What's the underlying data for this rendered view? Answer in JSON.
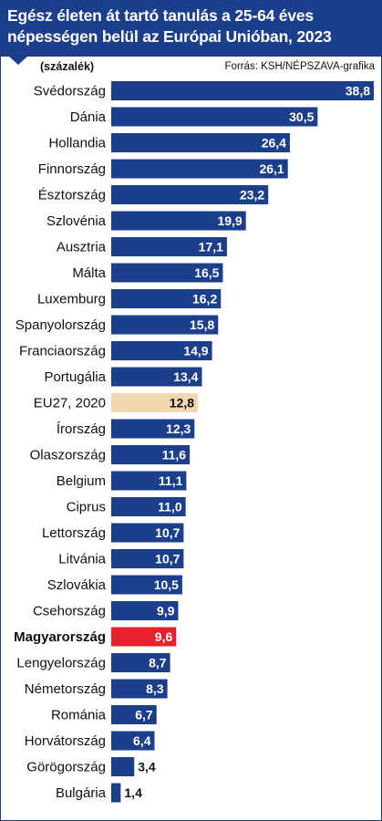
{
  "header": {
    "title_line1": "Egész életen át tartó tanulás a 25-64 éves",
    "title_line2": "népességen belül az Európai Unióban, 2023"
  },
  "unit_label": "(százalék)",
  "source": "Forrás: KSH/NÉPSZAVA-grafika",
  "colors": {
    "header_bg": "#1c3f8c",
    "bar": "#1c3f8c",
    "eu_bar": "#f2d8b1",
    "hungary_bar": "#e3222b",
    "text": "#111111"
  },
  "chart_data": {
    "type": "bar",
    "orientation": "horizontal",
    "title": "Egész életen át tartó tanulás a 25-64 éves népességen belül az Európai Unióban, 2023",
    "unit": "(százalék)",
    "categories": [
      "Svédország",
      "Dánia",
      "Hollandia",
      "Finnország",
      "Észtország",
      "Szlovénia",
      "Ausztria",
      "Málta",
      "Luxemburg",
      "Spanyolország",
      "Franciaország",
      "Portugália",
      "EU27, 2020",
      "Írország",
      "Olaszország",
      "Belgium",
      "Ciprus",
      "Lettország",
      "Litvánia",
      "Szlovákia",
      "Csehország",
      "Magyarország",
      "Lengyelország",
      "Németország",
      "Románia",
      "Horvátország",
      "Görögország",
      "Bulgária"
    ],
    "values": [
      38.8,
      30.5,
      26.4,
      26.1,
      23.2,
      19.9,
      17.1,
      16.5,
      16.2,
      15.8,
      14.9,
      13.4,
      12.8,
      12.3,
      11.6,
      11.1,
      11.0,
      10.7,
      10.7,
      10.5,
      9.9,
      9.6,
      8.7,
      8.3,
      6.7,
      6.4,
      3.4,
      1.4
    ],
    "value_labels": [
      "38,8",
      "30,5",
      "26,4",
      "26,1",
      "23,2",
      "19,9",
      "17,1",
      "16,5",
      "16,2",
      "15,8",
      "14,9",
      "13,4",
      "12,8",
      "12,3",
      "11,6",
      "11,1",
      "11,0",
      "10,7",
      "10,7",
      "10,5",
      "9,9",
      "9,6",
      "8,7",
      "8,3",
      "6,7",
      "6,4",
      "3,4",
      "1,4"
    ],
    "highlighted": {
      "Magyarország": "hungary",
      "EU27, 2020": "eu"
    },
    "xlim": [
      0,
      38.8
    ],
    "grid": false,
    "legend": "none"
  }
}
